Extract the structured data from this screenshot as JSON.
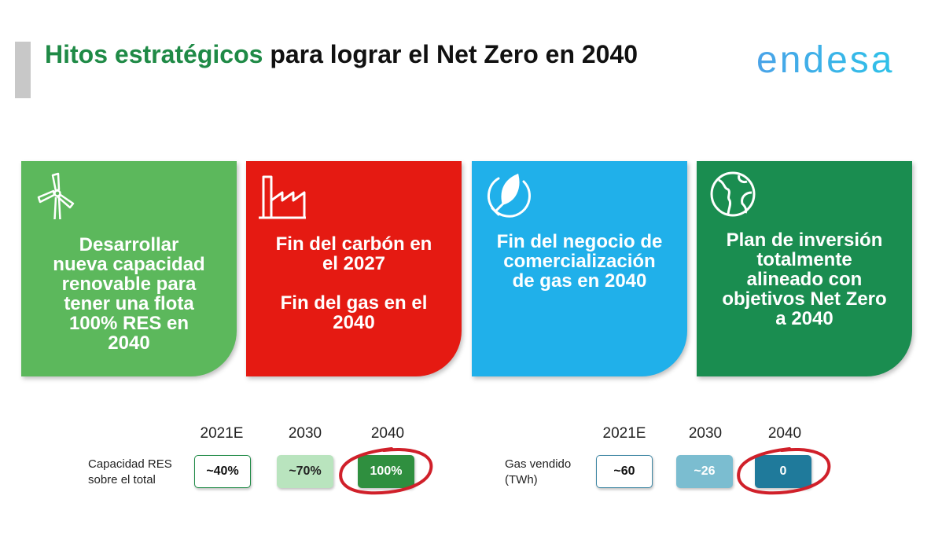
{
  "title": {
    "part_green": "Hitos estratégicos",
    "part_black": " para lograr el Net Zero en 2040"
  },
  "logo": {
    "text": "endesa"
  },
  "cards": [
    {
      "icon": "wind-turbine-icon",
      "color": "#5cb85c",
      "lines": [
        "Desarrollar",
        "nueva capacidad",
        "renovable para",
        "tener una flota",
        "100% RES en",
        "2040"
      ]
    },
    {
      "icon": "factory-icon",
      "color": "#e51a12",
      "text1_lines": [
        "Fin del carbón en",
        "el 2027"
      ],
      "text2_lines": [
        "Fin del gas en el",
        "2040"
      ]
    },
    {
      "icon": "leaf-plug-icon",
      "color": "#20b0ea",
      "lines": [
        "Fin del negocio de",
        "comercialización",
        "de gas en 2040"
      ]
    },
    {
      "icon": "globe-icon",
      "color": "#1a8d50",
      "lines": [
        "Plan de inversión",
        "totalmente",
        "alineado con",
        "objetivos Net Zero",
        "a 2040"
      ]
    }
  ],
  "res_table": {
    "years": [
      "2021E",
      "2030",
      "2040"
    ],
    "label_lines": [
      "Capacidad RES",
      "sobre el total"
    ],
    "values": [
      "~40%",
      "~70%",
      "100%"
    ]
  },
  "gas_table": {
    "years": [
      "2021E",
      "2030",
      "2040"
    ],
    "label_lines": [
      "Gas vendido",
      "(TWh)"
    ],
    "values": [
      "~60",
      "~26",
      "0"
    ]
  },
  "colors": {
    "brand_green": "#1f8a46",
    "highlight_circle": "#d0202a"
  }
}
